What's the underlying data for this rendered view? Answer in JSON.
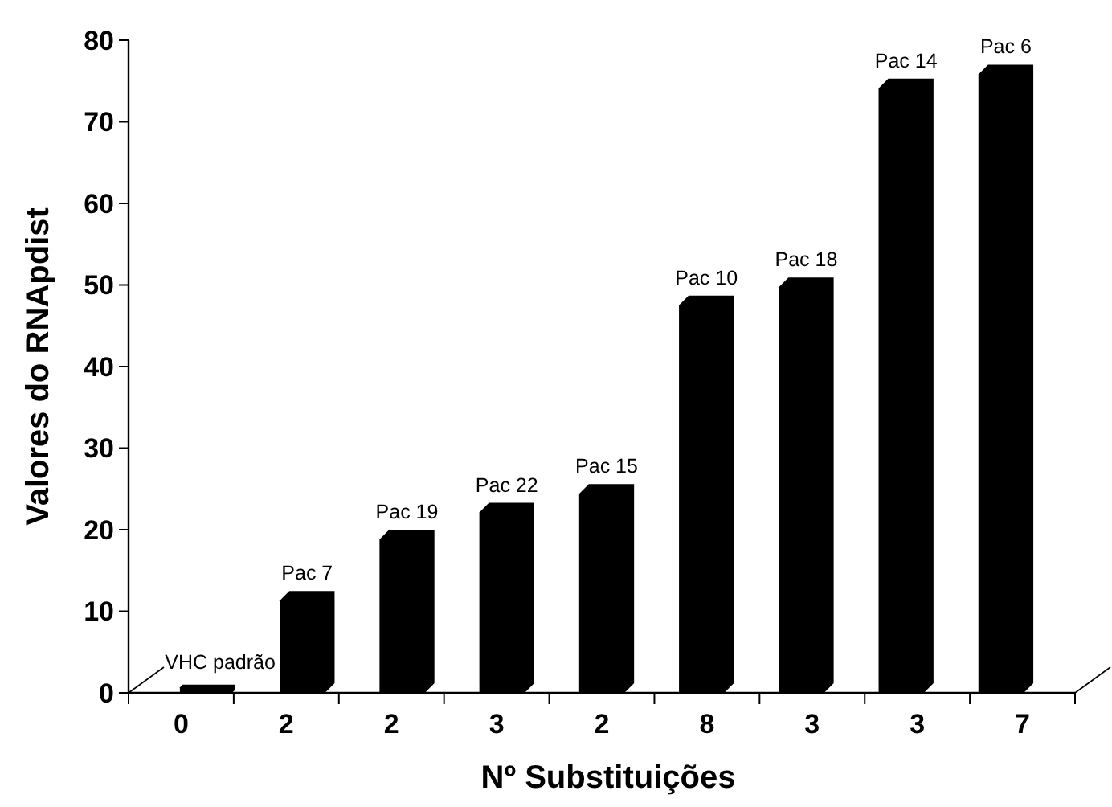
{
  "chart_data": {
    "type": "bar",
    "xlabel": "Nº Substituições",
    "ylabel": "Valores do RNApdist",
    "categories": [
      "0",
      "2",
      "2",
      "3",
      "2",
      "8",
      "3",
      "3",
      "7"
    ],
    "values": [
      1,
      12.5,
      20,
      23.3,
      25.6,
      48.7,
      50.9,
      75.3,
      77
    ],
    "value_labels": [
      "VHC padrão",
      "Pac 7",
      "Pac 19",
      "Pac 22",
      "Pac 15",
      "Pac 10",
      "Pac 18",
      "Pac 14",
      "Pac 6"
    ],
    "color": "#000000",
    "ylim": [
      0,
      80
    ],
    "yticks": [
      0,
      10,
      20,
      30,
      40,
      50,
      60,
      70,
      80
    ]
  }
}
